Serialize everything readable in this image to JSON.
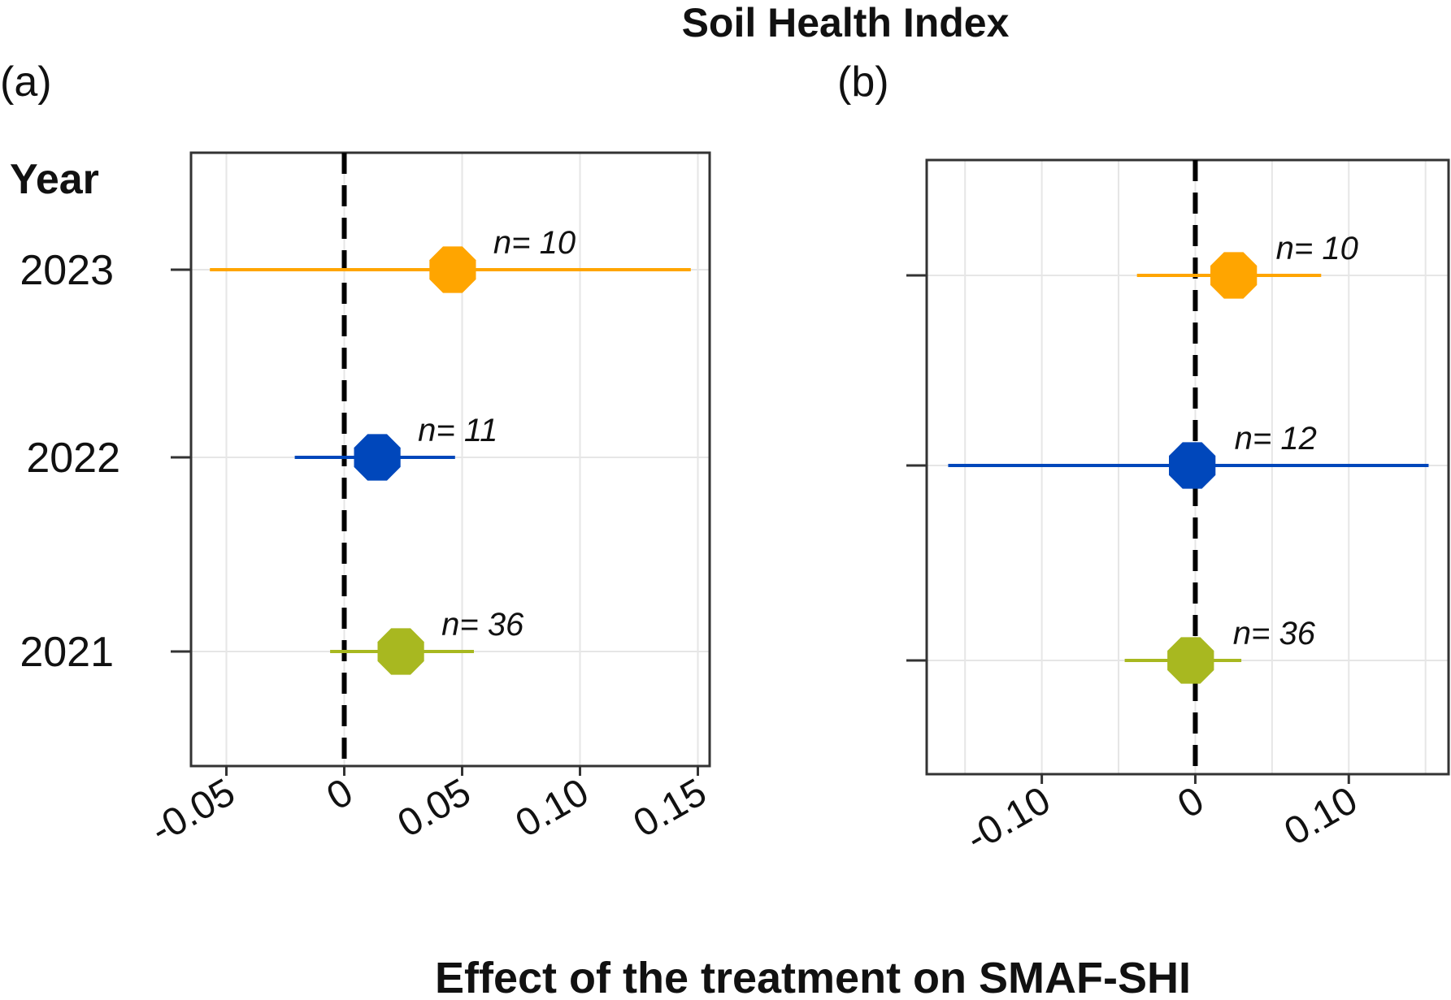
{
  "title": "Soil Health Index",
  "xlabel": "Effect of the treatment on SMAF-SHI",
  "ylabel": "Year",
  "colors": {
    "2023": "#FFA500",
    "2022": "#0047BB",
    "2021": "#A8B820"
  },
  "chart_data": [
    {
      "panel": "(a)",
      "type": "scatter",
      "ylabel": "Year",
      "categories": [
        "2023",
        "2022",
        "2021"
      ],
      "xlim": [
        -0.065,
        0.155
      ],
      "xticks": [
        -0.05,
        0,
        0.05,
        0.1,
        0.15
      ],
      "xtick_labels": [
        "-0.05",
        "0",
        "0.05",
        "0.10",
        "0.15"
      ],
      "reference_line_x": 0,
      "grid": true,
      "points": [
        {
          "year": "2023",
          "estimate": 0.046,
          "ci_low": -0.057,
          "ci_high": 0.147,
          "n_label": "n= 10"
        },
        {
          "year": "2022",
          "estimate": 0.014,
          "ci_low": -0.021,
          "ci_high": 0.047,
          "n_label": "n= 11"
        },
        {
          "year": "2021",
          "estimate": 0.024,
          "ci_low": -0.006,
          "ci_high": 0.055,
          "n_label": "n= 36"
        }
      ]
    },
    {
      "panel": "(b)",
      "type": "scatter",
      "categories": [
        "2023",
        "2022",
        "2021"
      ],
      "xlim": [
        -0.175,
        0.165
      ],
      "xticks": [
        -0.1,
        0,
        0.1
      ],
      "xtick_labels": [
        "-0.10",
        "0",
        "0.10"
      ],
      "reference_line_x": 0,
      "grid": true,
      "points": [
        {
          "year": "2023",
          "estimate": 0.025,
          "ci_low": -0.038,
          "ci_high": 0.082,
          "n_label": "n= 10"
        },
        {
          "year": "2022",
          "estimate": -0.002,
          "ci_low": -0.161,
          "ci_high": 0.152,
          "n_label": "n= 12"
        },
        {
          "year": "2021",
          "estimate": -0.003,
          "ci_low": -0.046,
          "ci_high": 0.03,
          "n_label": "n= 36"
        }
      ]
    }
  ]
}
